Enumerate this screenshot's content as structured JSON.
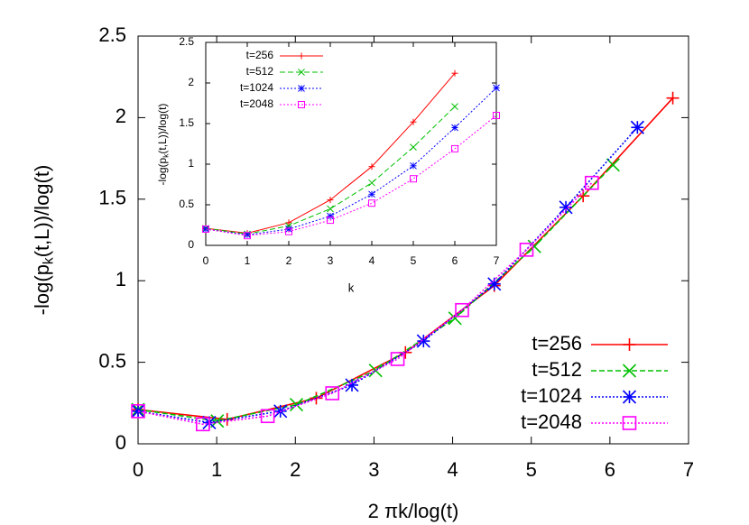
{
  "chart_data": [
    {
      "type": "line",
      "xlabel": "2 πk/log(t)",
      "ylabel": {
        "text": "-log(p",
        "sub": "k",
        "rest": "(t,L))/log(t)"
      },
      "xlim": [
        0,
        7
      ],
      "ylim": [
        0,
        2.5
      ],
      "xticks": [
        0,
        1,
        2,
        3,
        4,
        5,
        6,
        7
      ],
      "yticks": [
        0,
        0.5,
        1,
        1.5,
        2,
        2.5
      ],
      "legend": "lower right",
      "series": [
        {
          "name": "t=256",
          "color": "#ff0000",
          "dash": "solid",
          "marker": "plus",
          "x": [
            0,
            1.133,
            2.266,
            3.4,
            4.53,
            5.66,
            6.8
          ],
          "values": [
            0.21,
            0.15,
            0.28,
            0.56,
            0.97,
            1.52,
            2.12
          ]
        },
        {
          "name": "t=512",
          "color": "#00c000",
          "dash": "dashed",
          "marker": "cross",
          "x": [
            0,
            1.007,
            2.014,
            3.02,
            4.03,
            5.04,
            6.04
          ],
          "values": [
            0.21,
            0.14,
            0.24,
            0.45,
            0.77,
            1.21,
            1.71
          ]
        },
        {
          "name": "t=1024",
          "color": "#0000ff",
          "dash": "dotted",
          "marker": "star",
          "x": [
            0,
            0.906,
            1.81,
            2.72,
            3.63,
            4.53,
            5.44,
            6.35
          ],
          "values": [
            0.2,
            0.13,
            0.2,
            0.36,
            0.63,
            0.98,
            1.45,
            1.94
          ]
        },
        {
          "name": "t=2048",
          "color": "#ff00ff",
          "dash": "dotted",
          "marker": "square",
          "x": [
            0,
            0.824,
            1.648,
            2.47,
            3.3,
            4.12,
            4.94,
            5.77
          ],
          "values": [
            0.2,
            0.12,
            0.17,
            0.31,
            0.52,
            0.82,
            1.19,
            1.6
          ]
        }
      ]
    },
    {
      "type": "line",
      "xlabel": "k",
      "ylabel": {
        "text": "-log(p",
        "sub": "k",
        "rest": "(t,L))/log(t)"
      },
      "xlim": [
        0,
        7
      ],
      "ylim": [
        0,
        2.5
      ],
      "xticks": [
        0,
        1,
        2,
        3,
        4,
        5,
        6,
        7
      ],
      "yticks": [
        0,
        0.5,
        1,
        1.5,
        2,
        2.5
      ],
      "legend": "upper left",
      "series": [
        {
          "name": "t=256",
          "color": "#ff0000",
          "dash": "solid",
          "marker": "plus",
          "x": [
            0,
            1,
            2,
            3,
            4,
            5,
            6
          ],
          "values": [
            0.21,
            0.15,
            0.28,
            0.56,
            0.97,
            1.52,
            2.12
          ]
        },
        {
          "name": "t=512",
          "color": "#00c000",
          "dash": "dashed",
          "marker": "cross",
          "x": [
            0,
            1,
            2,
            3,
            4,
            5,
            6
          ],
          "values": [
            0.21,
            0.14,
            0.24,
            0.45,
            0.77,
            1.21,
            1.71
          ]
        },
        {
          "name": "t=1024",
          "color": "#0000ff",
          "dash": "dotted",
          "marker": "star",
          "x": [
            0,
            1,
            2,
            3,
            4,
            5,
            6,
            7
          ],
          "values": [
            0.2,
            0.13,
            0.2,
            0.36,
            0.63,
            0.98,
            1.45,
            1.94
          ]
        },
        {
          "name": "t=2048",
          "color": "#ff00ff",
          "dash": "dotted",
          "marker": "square",
          "x": [
            0,
            1,
            2,
            3,
            4,
            5,
            6,
            7
          ],
          "values": [
            0.2,
            0.12,
            0.17,
            0.31,
            0.52,
            0.82,
            1.19,
            1.6
          ]
        }
      ]
    }
  ]
}
